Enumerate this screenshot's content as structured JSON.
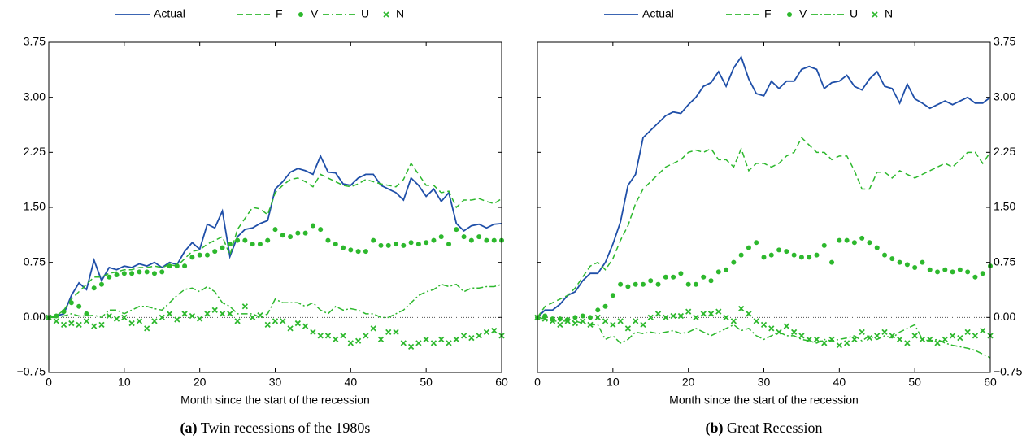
{
  "chart_data": [
    {
      "type": "line",
      "caption_label": "(a)",
      "caption": "Twin recessions of the 1980s",
      "xlabel": "Month since the start of the recession",
      "x": [
        0,
        1,
        2,
        3,
        4,
        5,
        6,
        7,
        8,
        9,
        10,
        11,
        12,
        13,
        14,
        15,
        16,
        17,
        18,
        19,
        20,
        21,
        22,
        23,
        24,
        25,
        26,
        27,
        28,
        29,
        30,
        31,
        32,
        33,
        34,
        35,
        36,
        37,
        38,
        39,
        40,
        41,
        42,
        43,
        44,
        45,
        46,
        47,
        48,
        49,
        50,
        51,
        52,
        53,
        54,
        55,
        56,
        57,
        58,
        59,
        60
      ],
      "xlim": [
        0,
        60
      ],
      "xticks": [
        0,
        10,
        20,
        30,
        40,
        50,
        60
      ],
      "ylim": [
        -0.75,
        3.75
      ],
      "yticks": [
        {
          "value": -0.75,
          "label": "−0.75"
        },
        {
          "value": 0,
          "label": "0.00"
        },
        {
          "value": 0.75,
          "label": "0.75"
        },
        {
          "value": 1.5,
          "label": "1.50"
        },
        {
          "value": 2.25,
          "label": "2.25"
        },
        {
          "value": 3,
          "label": "3.00"
        },
        {
          "value": 3.75,
          "label": "3.75"
        }
      ],
      "yaxis_side": "left",
      "reference_line": 0,
      "legend": "top",
      "series": [
        {
          "name": "Actual",
          "color": "#1f4fa8",
          "style": "solid",
          "values": [
            0,
            0.02,
            0.05,
            0.3,
            0.47,
            0.38,
            0.78,
            0.5,
            0.68,
            0.65,
            0.7,
            0.68,
            0.73,
            0.7,
            0.75,
            0.68,
            0.75,
            0.72,
            0.9,
            1.02,
            0.93,
            1.27,
            1.22,
            1.45,
            0.83,
            1.1,
            1.2,
            1.22,
            1.28,
            1.32,
            1.75,
            1.85,
            1.98,
            2.03,
            2.0,
            1.95,
            2.2,
            1.98,
            1.97,
            1.82,
            1.8,
            1.9,
            1.95,
            1.95,
            1.8,
            1.75,
            1.7,
            1.6,
            1.9,
            1.8,
            1.65,
            1.75,
            1.58,
            1.7,
            1.28,
            1.18,
            1.25,
            1.27,
            1.22,
            1.27,
            1.28
          ]
        },
        {
          "name": "F",
          "color": "#2db82d",
          "style": "dashed",
          "values": [
            0,
            0.02,
            0.1,
            0.25,
            0.35,
            0.45,
            0.55,
            0.55,
            0.6,
            0.62,
            0.65,
            0.65,
            0.68,
            0.68,
            0.7,
            0.68,
            0.72,
            0.7,
            0.8,
            0.9,
            0.92,
            1.0,
            1.05,
            1.1,
            0.85,
            1.2,
            1.35,
            1.5,
            1.48,
            1.4,
            1.7,
            1.8,
            1.88,
            1.9,
            1.85,
            1.78,
            1.95,
            1.9,
            1.85,
            1.8,
            1.78,
            1.82,
            1.88,
            1.85,
            1.82,
            1.8,
            1.78,
            1.88,
            2.1,
            1.95,
            1.8,
            1.8,
            1.7,
            1.72,
            1.5,
            1.6,
            1.6,
            1.62,
            1.58,
            1.55,
            1.62
          ]
        },
        {
          "name": "V",
          "color": "#2db82d",
          "style": "dots",
          "values": [
            0,
            0.02,
            0.08,
            0.2,
            0.15,
            0.05,
            0.4,
            0.45,
            0.55,
            0.58,
            0.6,
            0.6,
            0.62,
            0.62,
            0.6,
            0.62,
            0.7,
            0.7,
            0.7,
            0.82,
            0.85,
            0.85,
            0.9,
            0.95,
            1.0,
            1.05,
            1.05,
            1.0,
            1.0,
            1.05,
            1.2,
            1.12,
            1.1,
            1.15,
            1.15,
            1.25,
            1.2,
            1.05,
            1.0,
            0.95,
            0.92,
            0.9,
            0.9,
            1.05,
            0.98,
            0.98,
            1.0,
            0.98,
            1.02,
            1.0,
            1.02,
            1.05,
            1.1,
            1.0,
            1.2,
            1.1,
            1.05,
            1.1,
            1.05,
            1.05,
            1.05
          ]
        },
        {
          "name": "U",
          "color": "#2db82d",
          "style": "dashdot",
          "values": [
            0,
            0,
            0.02,
            0.05,
            0.02,
            0.02,
            0.03,
            0,
            0.1,
            0.1,
            0.05,
            0.1,
            0.15,
            0.15,
            0.12,
            0.1,
            0.2,
            0.3,
            0.38,
            0.4,
            0.35,
            0.42,
            0.35,
            0.2,
            0.15,
            0.05,
            0.05,
            0.05,
            0,
            0.05,
            0.25,
            0.2,
            0.2,
            0.2,
            0.15,
            0.2,
            0.1,
            0.05,
            0.15,
            0.1,
            0.12,
            0.1,
            0.05,
            0.05,
            0,
            0,
            0.05,
            0.1,
            0.2,
            0.3,
            0.35,
            0.38,
            0.45,
            0.42,
            0.45,
            0.35,
            0.4,
            0.4,
            0.42,
            0.42,
            0.45
          ]
        },
        {
          "name": "N",
          "color": "#2db82d",
          "style": "cross",
          "values": [
            0,
            -0.05,
            -0.1,
            -0.08,
            -0.1,
            -0.05,
            -0.12,
            -0.1,
            0.02,
            -0.02,
            0,
            -0.08,
            -0.05,
            -0.15,
            -0.05,
            0,
            0.05,
            -0.03,
            0.05,
            0.02,
            -0.02,
            0.05,
            0.1,
            0.05,
            0.05,
            -0.05,
            0.15,
            0,
            0.03,
            -0.1,
            -0.05,
            -0.05,
            -0.15,
            -0.08,
            -0.12,
            -0.2,
            -0.25,
            -0.25,
            -0.3,
            -0.25,
            -0.35,
            -0.32,
            -0.25,
            -0.15,
            -0.3,
            -0.2,
            -0.2,
            -0.35,
            -0.4,
            -0.35,
            -0.3,
            -0.35,
            -0.3,
            -0.35,
            -0.3,
            -0.25,
            -0.28,
            -0.25,
            -0.2,
            -0.18,
            -0.25
          ]
        }
      ]
    },
    {
      "type": "line",
      "caption_label": "(b)",
      "caption": "Great Recession",
      "xlabel": "Month since the start of the recession",
      "x": [
        0,
        1,
        2,
        3,
        4,
        5,
        6,
        7,
        8,
        9,
        10,
        11,
        12,
        13,
        14,
        15,
        16,
        17,
        18,
        19,
        20,
        21,
        22,
        23,
        24,
        25,
        26,
        27,
        28,
        29,
        30,
        31,
        32,
        33,
        34,
        35,
        36,
        37,
        38,
        39,
        40,
        41,
        42,
        43,
        44,
        45,
        46,
        47,
        48,
        49,
        50,
        51,
        52,
        53,
        54,
        55,
        56,
        57,
        58,
        59,
        60
      ],
      "xlim": [
        0,
        60
      ],
      "xticks": [
        0,
        10,
        20,
        30,
        40,
        50,
        60
      ],
      "ylim": [
        -0.75,
        3.75
      ],
      "yticks": [
        {
          "value": -0.75,
          "label": "−0.75"
        },
        {
          "value": 0,
          "label": "0.00"
        },
        {
          "value": 0.75,
          "label": "0.75"
        },
        {
          "value": 1.5,
          "label": "1.50"
        },
        {
          "value": 2.25,
          "label": "2.25"
        },
        {
          "value": 3,
          "label": "3.00"
        },
        {
          "value": 3.75,
          "label": "3.75"
        }
      ],
      "yaxis_side": "right",
      "reference_line": 0,
      "legend": "top",
      "series": [
        {
          "name": "Actual",
          "color": "#1f4fa8",
          "style": "solid",
          "values": [
            0,
            0.1,
            0.1,
            0.18,
            0.3,
            0.35,
            0.5,
            0.6,
            0.6,
            0.75,
            1.0,
            1.3,
            1.8,
            1.95,
            2.45,
            2.55,
            2.65,
            2.75,
            2.8,
            2.78,
            2.9,
            3.0,
            3.15,
            3.2,
            3.35,
            3.15,
            3.4,
            3.55,
            3.25,
            3.05,
            3.02,
            3.22,
            3.12,
            3.22,
            3.22,
            3.38,
            3.42,
            3.38,
            3.12,
            3.2,
            3.22,
            3.3,
            3.15,
            3.1,
            3.25,
            3.35,
            3.15,
            3.12,
            2.92,
            3.18,
            2.98,
            2.92,
            2.85,
            2.9,
            2.95,
            2.9,
            2.95,
            3.0,
            2.92,
            2.92,
            3.0
          ]
        },
        {
          "name": "F",
          "color": "#2db82d",
          "style": "dashed",
          "values": [
            0,
            0.15,
            0.2,
            0.25,
            0.3,
            0.4,
            0.55,
            0.7,
            0.75,
            0.65,
            0.8,
            1.05,
            1.25,
            1.55,
            1.75,
            1.85,
            1.95,
            2.05,
            2.1,
            2.15,
            2.25,
            2.28,
            2.25,
            2.3,
            2.15,
            2.15,
            2.05,
            2.3,
            2.0,
            2.1,
            2.1,
            2.05,
            2.1,
            2.2,
            2.25,
            2.45,
            2.35,
            2.25,
            2.25,
            2.15,
            2.2,
            2.2,
            2.0,
            1.75,
            1.75,
            1.98,
            1.98,
            1.9,
            2.0,
            1.95,
            1.9,
            1.95,
            2.0,
            2.05,
            2.1,
            2.05,
            2.15,
            2.25,
            2.25,
            2.1,
            2.25
          ]
        },
        {
          "name": "V",
          "color": "#2db82d",
          "style": "dots",
          "values": [
            0,
            0.02,
            -0.02,
            -0.02,
            -0.03,
            0,
            0.02,
            0,
            0.1,
            0.15,
            0.3,
            0.45,
            0.42,
            0.45,
            0.45,
            0.5,
            0.45,
            0.55,
            0.55,
            0.6,
            0.45,
            0.45,
            0.55,
            0.5,
            0.62,
            0.65,
            0.75,
            0.85,
            0.95,
            1.02,
            0.82,
            0.85,
            0.92,
            0.9,
            0.85,
            0.82,
            0.82,
            0.85,
            0.98,
            0.75,
            1.05,
            1.05,
            1.02,
            1.08,
            1.02,
            0.95,
            0.85,
            0.8,
            0.75,
            0.72,
            0.68,
            0.75,
            0.65,
            0.62,
            0.65,
            0.62,
            0.65,
            0.62,
            0.55,
            0.6,
            0.7
          ]
        },
        {
          "name": "U",
          "color": "#2db82d",
          "style": "dashdot",
          "values": [
            0,
            -0.02,
            -0.05,
            -0.05,
            -0.05,
            -0.05,
            -0.08,
            -0.1,
            -0.1,
            -0.3,
            -0.25,
            -0.35,
            -0.3,
            -0.2,
            -0.22,
            -0.2,
            -0.22,
            -0.2,
            -0.18,
            -0.22,
            -0.2,
            -0.15,
            -0.2,
            -0.25,
            -0.2,
            -0.15,
            -0.1,
            -0.18,
            -0.15,
            -0.25,
            -0.3,
            -0.25,
            -0.2,
            -0.25,
            -0.25,
            -0.3,
            -0.32,
            -0.35,
            -0.3,
            -0.32,
            -0.3,
            -0.28,
            -0.25,
            -0.32,
            -0.25,
            -0.3,
            -0.25,
            -0.28,
            -0.2,
            -0.15,
            -0.1,
            -0.3,
            -0.32,
            -0.3,
            -0.35,
            -0.38,
            -0.4,
            -0.42,
            -0.45,
            -0.5,
            -0.55
          ]
        },
        {
          "name": "N",
          "color": "#2db82d",
          "style": "cross",
          "values": [
            0,
            -0.02,
            -0.05,
            -0.1,
            -0.05,
            -0.08,
            -0.05,
            -0.1,
            0,
            -0.05,
            -0.1,
            -0.05,
            -0.15,
            -0.05,
            -0.1,
            0,
            0.05,
            0,
            0.02,
            0.02,
            0.08,
            0,
            0.05,
            0.05,
            0.08,
            0,
            -0.05,
            0.12,
            0.05,
            -0.05,
            -0.1,
            -0.15,
            -0.2,
            -0.12,
            -0.2,
            -0.25,
            -0.3,
            -0.3,
            -0.35,
            -0.3,
            -0.38,
            -0.35,
            -0.3,
            -0.2,
            -0.28,
            -0.25,
            -0.2,
            -0.25,
            -0.3,
            -0.35,
            -0.25,
            -0.3,
            -0.3,
            -0.35,
            -0.3,
            -0.25,
            -0.28,
            -0.2,
            -0.25,
            -0.18,
            -0.25
          ]
        }
      ]
    }
  ]
}
